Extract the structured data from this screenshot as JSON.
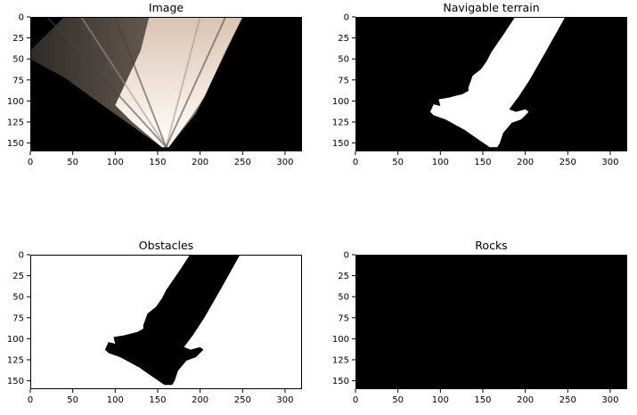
{
  "chart_data": [
    {
      "type": "image",
      "title": "Image",
      "image_size": [
        320,
        160
      ],
      "xlim": [
        0,
        320
      ],
      "ylim": [
        160,
        0
      ],
      "xticks": [
        0,
        50,
        100,
        150,
        200,
        250,
        300
      ],
      "yticks": [
        0,
        25,
        50,
        75,
        100,
        125,
        150
      ],
      "colors": {
        "background": "#000000",
        "floor": "#e8d2c0",
        "floor_light": "#f4eae0",
        "floor_dark": "#6b5a4f"
      }
    },
    {
      "type": "image",
      "title": "Navigable terrain",
      "image_size": [
        320,
        160
      ],
      "xlim": [
        0,
        320
      ],
      "ylim": [
        160,
        0
      ],
      "xticks": [
        0,
        50,
        100,
        150,
        200,
        250,
        300
      ],
      "yticks": [
        0,
        25,
        50,
        75,
        100,
        125,
        150
      ],
      "colors": {
        "background": "#000000",
        "mask": "#ffffff"
      }
    },
    {
      "type": "image",
      "title": "Obstacles",
      "image_size": [
        320,
        160
      ],
      "xlim": [
        0,
        320
      ],
      "ylim": [
        160,
        0
      ],
      "xticks": [
        0,
        50,
        100,
        150,
        200,
        250,
        300
      ],
      "yticks": [
        0,
        25,
        50,
        75,
        100,
        125,
        150
      ],
      "colors": {
        "background": "#ffffff",
        "mask": "#000000"
      }
    },
    {
      "type": "image",
      "title": "Rocks",
      "image_size": [
        320,
        160
      ],
      "xlim": [
        0,
        320
      ],
      "ylim": [
        160,
        0
      ],
      "xticks": [
        0,
        50,
        100,
        150,
        200,
        250,
        300
      ],
      "yticks": [
        0,
        25,
        50,
        75,
        100,
        125,
        150
      ],
      "colors": {
        "background": "#000000",
        "mask": "#ffffff"
      }
    }
  ],
  "terrain_polygon": [
    [
      188,
      0
    ],
    [
      247,
      0
    ],
    [
      236,
      20
    ],
    [
      222,
      45
    ],
    [
      205,
      75
    ],
    [
      192,
      95
    ],
    [
      181,
      110
    ],
    [
      189,
      113
    ],
    [
      200,
      110
    ],
    [
      204,
      113
    ],
    [
      195,
      122
    ],
    [
      184,
      126
    ],
    [
      174,
      138
    ],
    [
      170,
      150
    ],
    [
      167,
      155
    ],
    [
      158,
      155
    ],
    [
      148,
      148
    ],
    [
      128,
      134
    ],
    [
      106,
      122
    ],
    [
      92,
      117
    ],
    [
      88,
      113
    ],
    [
      92,
      104
    ],
    [
      100,
      106
    ],
    [
      98,
      98
    ],
    [
      110,
      96
    ],
    [
      126,
      92
    ],
    [
      133,
      88
    ],
    [
      133,
      84
    ],
    [
      138,
      70
    ],
    [
      148,
      62
    ],
    [
      155,
      52
    ],
    [
      160,
      42
    ],
    [
      175,
      20
    ]
  ]
}
